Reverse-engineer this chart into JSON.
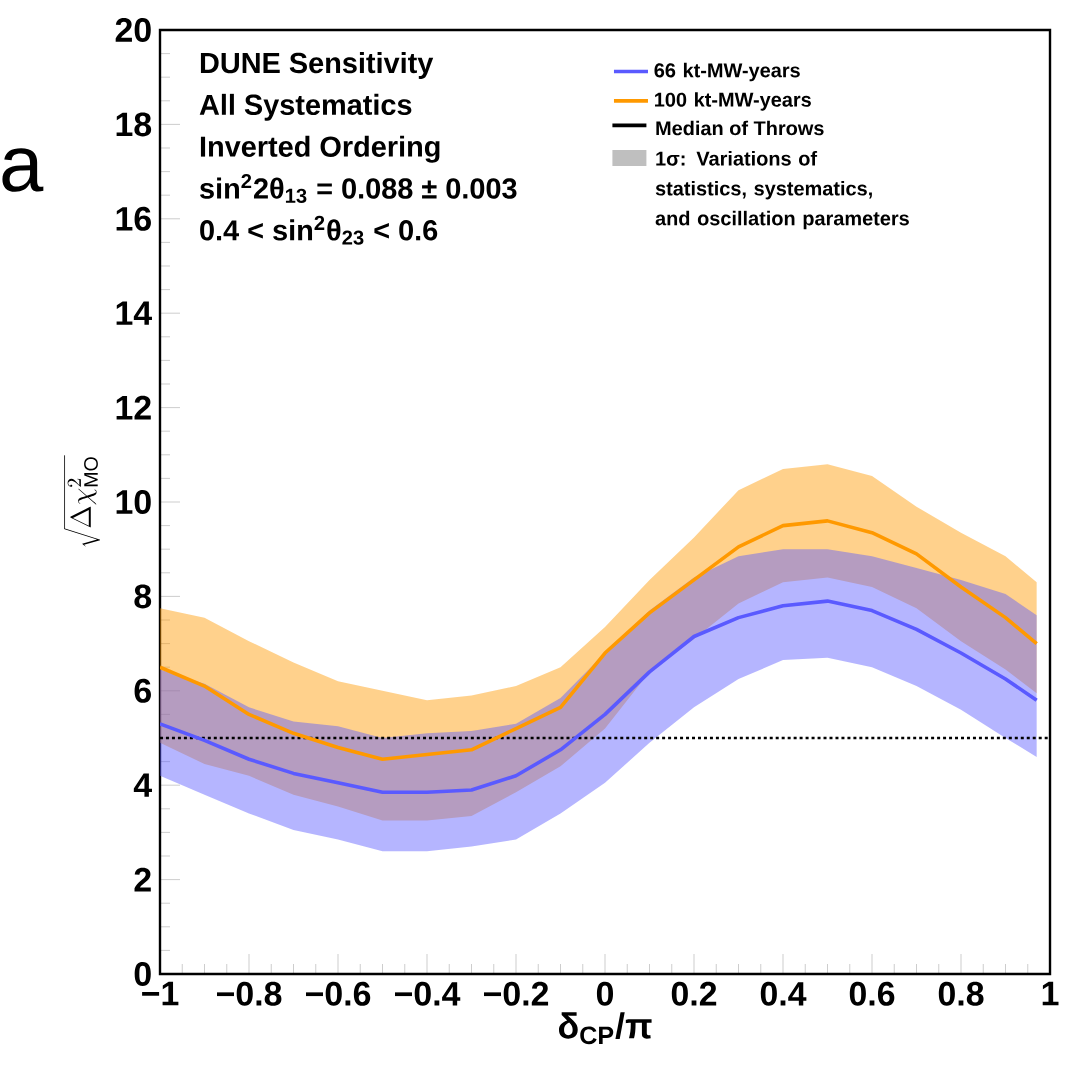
{
  "chart_data": {
    "type": "line",
    "title": "DUNE Sensitivity",
    "xlabel": "δ$_{CP}$/π",
    "ylabel": "\\sqrt{\\Delta\\chi^{2}_{\\mathrm{MO}}}",
    "x": [
      -1,
      -0.9,
      -0.8,
      -0.7,
      -0.6,
      -0.5,
      -0.4,
      -0.3,
      -0.2,
      -0.1,
      0,
      0.1,
      0.2,
      0.3,
      0.4,
      0.5,
      0.6,
      0.7,
      0.8,
      0.9,
      0.97
    ],
    "series": [
      {
        "name": "100 kt-MW-years",
        "color": "#ff9900",
        "values": [
          6.5,
          6.1,
          5.5,
          5.1,
          4.8,
          4.55,
          4.65,
          4.75,
          5.2,
          5.65,
          6.8,
          7.65,
          8.35,
          9.05,
          9.5,
          9.6,
          9.35,
          8.9,
          8.2,
          7.55,
          7.0
        ],
        "upper": [
          7.75,
          7.55,
          7.05,
          6.6,
          6.2,
          6.0,
          5.8,
          5.9,
          6.1,
          6.5,
          7.35,
          8.35,
          9.25,
          10.25,
          10.7,
          10.8,
          10.55,
          9.9,
          9.35,
          8.85,
          8.3
        ],
        "lower": [
          4.9,
          4.45,
          4.2,
          3.8,
          3.55,
          3.25,
          3.25,
          3.35,
          3.85,
          4.4,
          5.2,
          6.4,
          7.1,
          7.85,
          8.3,
          8.4,
          8.2,
          7.75,
          7.05,
          6.45,
          5.95
        ]
      },
      {
        "name": "66 kt-MW-years",
        "color": "#5a5aff",
        "values": [
          5.3,
          4.95,
          4.55,
          4.25,
          4.05,
          3.85,
          3.85,
          3.9,
          4.2,
          4.75,
          5.5,
          6.4,
          7.15,
          7.55,
          7.8,
          7.9,
          7.7,
          7.3,
          6.8,
          6.25,
          5.8
        ],
        "upper": [
          6.45,
          6.15,
          5.65,
          5.35,
          5.25,
          5.0,
          5.1,
          5.15,
          5.3,
          5.85,
          6.8,
          7.7,
          8.4,
          8.85,
          9.0,
          9.0,
          8.85,
          8.6,
          8.35,
          8.05,
          7.6
        ],
        "lower": [
          4.2,
          3.8,
          3.4,
          3.05,
          2.85,
          2.6,
          2.6,
          2.7,
          2.85,
          3.4,
          4.05,
          4.9,
          5.65,
          6.25,
          6.65,
          6.7,
          6.5,
          6.1,
          5.6,
          5.0,
          4.6
        ]
      }
    ],
    "xlim": [
      -1,
      1
    ],
    "ylim": [
      0,
      20
    ],
    "xticks": [
      {
        "value": -1,
        "label": "−1"
      },
      {
        "value": -0.8,
        "label": "−0.8"
      },
      {
        "value": -0.6,
        "label": "−0.6"
      },
      {
        "value": -0.4,
        "label": "−0.4"
      },
      {
        "value": -0.2,
        "label": "−0.2"
      },
      0,
      0.2,
      0.4,
      0.6,
      0.8,
      1
    ],
    "yticks": [
      0,
      2,
      4,
      6,
      8,
      10,
      12,
      14,
      16,
      18,
      20
    ],
    "ref_lines": [
      {
        "axis": "y",
        "value": 5,
        "color": "#000000",
        "line_style": "dotted"
      }
    ],
    "legend": "top right",
    "annotations": [
      "All Systematics",
      "Inverted Ordering",
      "sin$^{2}$2θ$_{13}$ = 0.088 ± 0.003",
      "0.4 < sin$^{2}$θ$_{23}$ < 0.6",
      "Median of Throws",
      "1σ: Variations of statistics, systematics, and oscillation parameters",
      "a"
    ]
  }
}
